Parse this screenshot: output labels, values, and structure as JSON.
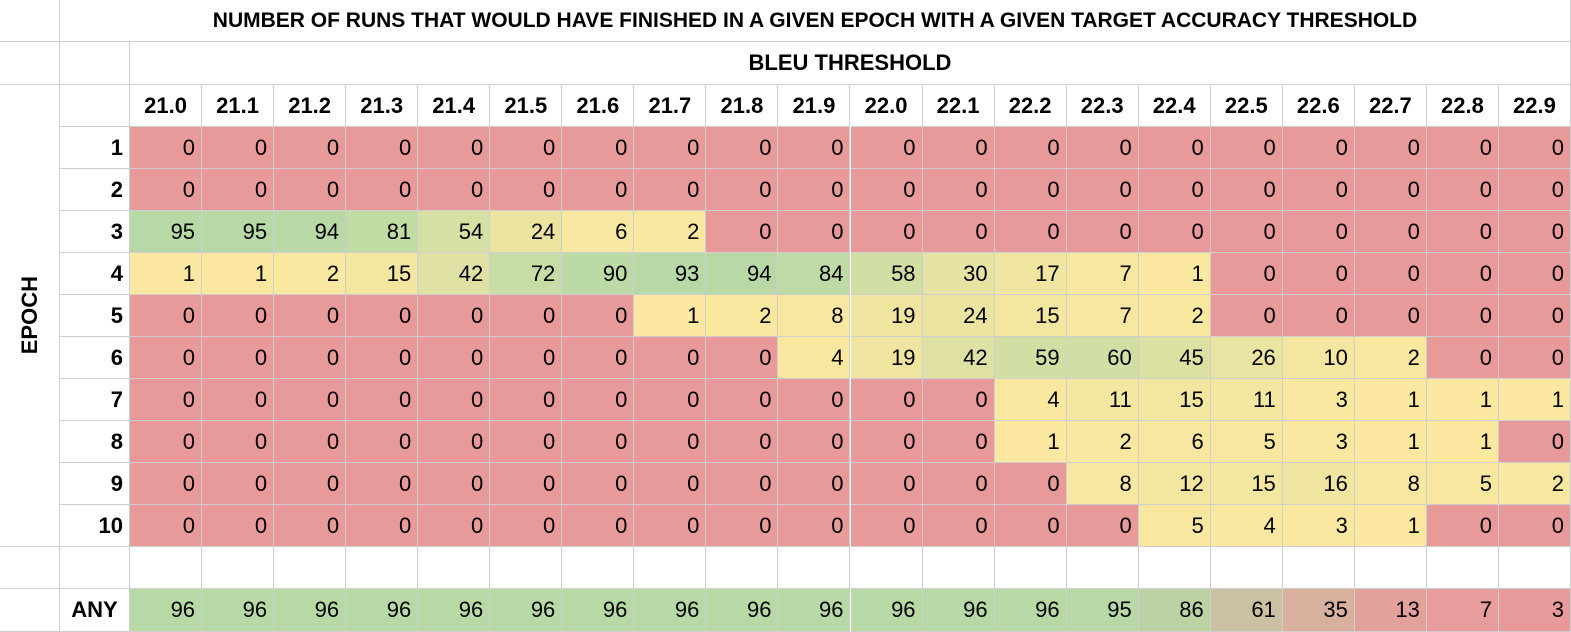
{
  "title": "NUMBER OF RUNS THAT WOULD HAVE FINISHED IN A GIVEN EPOCH WITH A GIVEN TARGET ACCURACY THRESHOLD",
  "column_group_label": "BLEU THRESHOLD",
  "row_group_label": "EPOCH",
  "columns": [
    "21.0",
    "21.1",
    "21.2",
    "21.3",
    "21.4",
    "21.5",
    "21.6",
    "21.7",
    "21.8",
    "21.9",
    "22.0",
    "22.1",
    "22.2",
    "22.3",
    "22.4",
    "22.5",
    "22.6",
    "22.7",
    "22.8",
    "22.9"
  ],
  "rows": [
    {
      "label": "1",
      "values": [
        0,
        0,
        0,
        0,
        0,
        0,
        0,
        0,
        0,
        0,
        0,
        0,
        0,
        0,
        0,
        0,
        0,
        0,
        0,
        0
      ]
    },
    {
      "label": "2",
      "values": [
        0,
        0,
        0,
        0,
        0,
        0,
        0,
        0,
        0,
        0,
        0,
        0,
        0,
        0,
        0,
        0,
        0,
        0,
        0,
        0
      ]
    },
    {
      "label": "3",
      "values": [
        95,
        95,
        94,
        81,
        54,
        24,
        6,
        2,
        0,
        0,
        0,
        0,
        0,
        0,
        0,
        0,
        0,
        0,
        0,
        0
      ]
    },
    {
      "label": "4",
      "values": [
        1,
        1,
        2,
        15,
        42,
        72,
        90,
        93,
        94,
        84,
        58,
        30,
        17,
        7,
        1,
        0,
        0,
        0,
        0,
        0
      ]
    },
    {
      "label": "5",
      "values": [
        0,
        0,
        0,
        0,
        0,
        0,
        0,
        1,
        2,
        8,
        19,
        24,
        15,
        7,
        2,
        0,
        0,
        0,
        0,
        0
      ]
    },
    {
      "label": "6",
      "values": [
        0,
        0,
        0,
        0,
        0,
        0,
        0,
        0,
        0,
        4,
        19,
        42,
        59,
        60,
        45,
        26,
        10,
        2,
        0,
        0
      ]
    },
    {
      "label": "7",
      "values": [
        0,
        0,
        0,
        0,
        0,
        0,
        0,
        0,
        0,
        0,
        0,
        0,
        4,
        11,
        15,
        11,
        3,
        1,
        1,
        1
      ]
    },
    {
      "label": "8",
      "values": [
        0,
        0,
        0,
        0,
        0,
        0,
        0,
        0,
        0,
        0,
        0,
        0,
        1,
        2,
        6,
        5,
        3,
        1,
        1,
        0
      ]
    },
    {
      "label": "9",
      "values": [
        0,
        0,
        0,
        0,
        0,
        0,
        0,
        0,
        0,
        0,
        0,
        0,
        0,
        8,
        12,
        15,
        16,
        8,
        5,
        2
      ]
    },
    {
      "label": "10",
      "values": [
        0,
        0,
        0,
        0,
        0,
        0,
        0,
        0,
        0,
        0,
        0,
        0,
        0,
        0,
        5,
        4,
        3,
        1,
        0,
        0
      ]
    }
  ],
  "summary": {
    "label": "ANY",
    "values": [
      96,
      96,
      96,
      96,
      96,
      96,
      96,
      96,
      96,
      96,
      96,
      96,
      96,
      95,
      86,
      61,
      35,
      13,
      7,
      3
    ]
  },
  "color_scale": {
    "zero": "#e89a9a",
    "low": "#fce8a0",
    "high": "#b7d9a6"
  }
}
